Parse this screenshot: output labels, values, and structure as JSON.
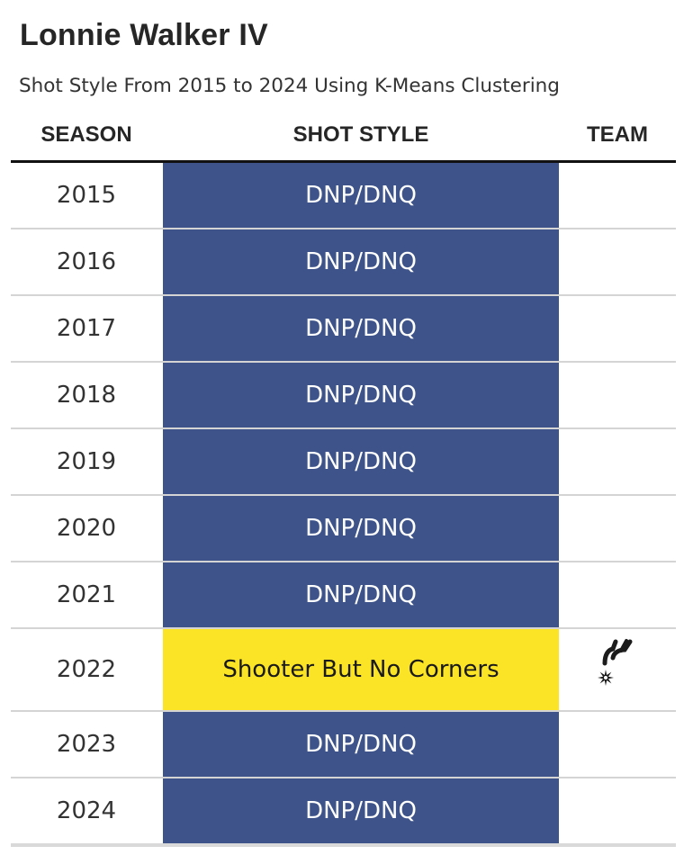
{
  "title": "Lonnie Walker IV",
  "subtitle": "Shot Style From 2015 to 2024 Using K-Means Clustering",
  "headers": {
    "season": "SEASON",
    "shot_style": "SHOT STYLE",
    "team": "TEAM"
  },
  "colors": {
    "dnp": "#3d5389",
    "dnp_text": "#ffffff",
    "shooter_but_no_corners": "#fbe426",
    "shooter_text": "#1a1a1a",
    "team_logo": "#1c1c1c"
  },
  "chart_data": {
    "type": "table",
    "columns": [
      "SEASON",
      "SHOT STYLE",
      "TEAM"
    ],
    "rows": [
      {
        "season": "2015",
        "shot_style": "DNP/DNQ",
        "team_icon": ""
      },
      {
        "season": "2016",
        "shot_style": "DNP/DNQ",
        "team_icon": ""
      },
      {
        "season": "2017",
        "shot_style": "DNP/DNQ",
        "team_icon": ""
      },
      {
        "season": "2018",
        "shot_style": "DNP/DNQ",
        "team_icon": ""
      },
      {
        "season": "2019",
        "shot_style": "DNP/DNQ",
        "team_icon": ""
      },
      {
        "season": "2020",
        "shot_style": "DNP/DNQ",
        "team_icon": ""
      },
      {
        "season": "2021",
        "shot_style": "DNP/DNQ",
        "team_icon": ""
      },
      {
        "season": "2022",
        "shot_style": "Shooter But No Corners",
        "team_icon": "spurs-logo-icon"
      },
      {
        "season": "2023",
        "shot_style": "DNP/DNQ",
        "team_icon": ""
      },
      {
        "season": "2024",
        "shot_style": "DNP/DNQ",
        "team_icon": ""
      }
    ]
  }
}
